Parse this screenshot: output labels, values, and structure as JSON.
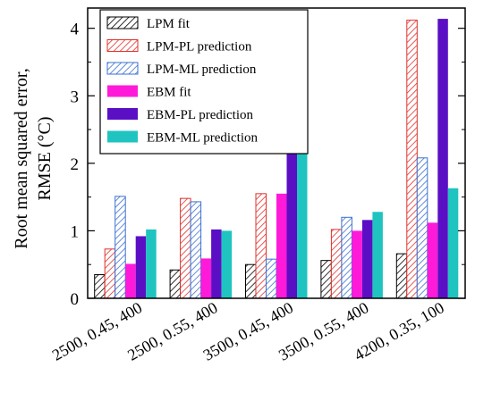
{
  "chart_data": {
    "type": "bar",
    "title": "",
    "xlabel": "",
    "ylabel_line1": "Root mean squared error,",
    "ylabel_line2": "RMSE (°C)",
    "ylim": [
      0,
      4.3
    ],
    "yticks": [
      0,
      1,
      2,
      3,
      4
    ],
    "grid": false,
    "legend_position": "top-left",
    "categories": [
      "2500, 0.45, 400",
      "2500, 0.55, 400",
      "3500, 0.45, 400",
      "3500, 0.55, 400",
      "4200, 0.35, 100"
    ],
    "series": [
      {
        "name": "LPM fit",
        "color": "#000000",
        "fill": "hatch",
        "values": [
          0.35,
          0.42,
          0.5,
          0.56,
          0.66
        ]
      },
      {
        "name": "LPM-PL prediction",
        "color": "#e0302a",
        "fill": "hatch",
        "values": [
          0.73,
          1.48,
          1.55,
          1.02,
          4.12
        ]
      },
      {
        "name": "LPM-ML prediction",
        "color": "#3a70d0",
        "fill": "hatch",
        "values": [
          1.51,
          1.43,
          0.58,
          1.2,
          2.08
        ]
      },
      {
        "name": "EBM fit",
        "color": "#ff1ad9",
        "fill": "solid",
        "values": [
          0.51,
          0.59,
          1.55,
          1.0,
          1.12
        ]
      },
      {
        "name": "EBM-PL prediction",
        "color": "#5a0fc4",
        "fill": "solid",
        "values": [
          0.92,
          1.02,
          2.21,
          1.16,
          4.14
        ]
      },
      {
        "name": "EBM-ML prediction",
        "color": "#1fc4c0",
        "fill": "solid",
        "values": [
          1.02,
          1.0,
          2.17,
          1.28,
          1.63
        ]
      }
    ]
  }
}
